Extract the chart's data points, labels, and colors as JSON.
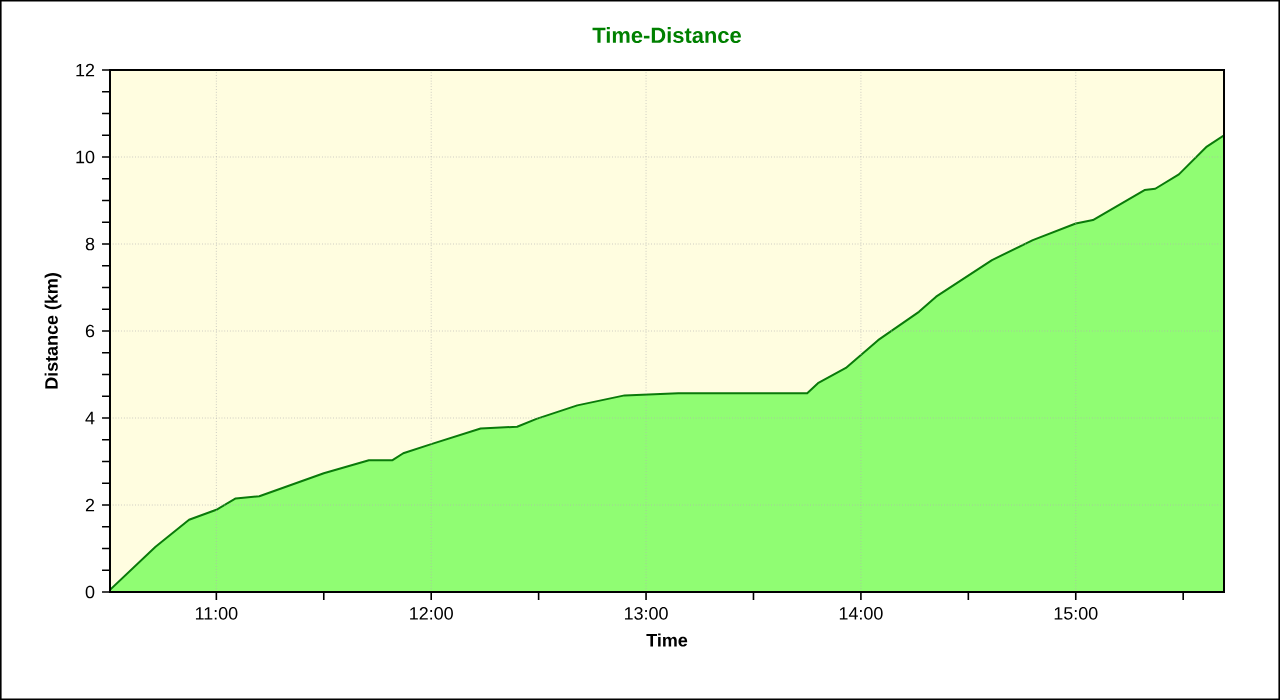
{
  "chart_data": {
    "type": "area",
    "title": "Time-Distance",
    "xlabel": "Time",
    "ylabel": "Distance (km)",
    "x": [
      10.505,
      10.717,
      10.873,
      11.0,
      11.09,
      11.2,
      11.5,
      11.71,
      11.82,
      11.87,
      12.0,
      12.23,
      12.4,
      12.49,
      12.68,
      12.9,
      13.15,
      13.75,
      13.8,
      13.93,
      14.08,
      14.27,
      14.35,
      14.61,
      14.8,
      15.0,
      15.08,
      15.32,
      15.37,
      15.48,
      15.61,
      15.69
    ],
    "series": [
      {
        "color": "#0a7a0a",
        "values": [
          0.05,
          1.04,
          1.66,
          1.89,
          2.15,
          2.2,
          2.73,
          3.03,
          3.03,
          3.19,
          3.4,
          3.76,
          3.8,
          3.98,
          4.29,
          4.52,
          4.57,
          4.57,
          4.8,
          5.15,
          5.79,
          6.44,
          6.79,
          7.63,
          8.09,
          8.47,
          8.55,
          9.24,
          9.27,
          9.6,
          10.24,
          10.5
        ]
      }
    ],
    "xlim": [
      10.505,
      15.69
    ],
    "ylim": [
      0,
      12
    ],
    "xticks": [
      {
        "value": 11,
        "label": "11:00"
      },
      {
        "value": 11.5,
        "label": null
      },
      {
        "value": 12,
        "label": "12:00"
      },
      {
        "value": 12.5,
        "label": null
      },
      {
        "value": 13,
        "label": "13:00"
      },
      {
        "value": 13.5,
        "label": null
      },
      {
        "value": 14,
        "label": "14:00"
      },
      {
        "value": 14.5,
        "label": null
      },
      {
        "value": 15,
        "label": "15:00"
      },
      {
        "value": 15.5,
        "label": null
      }
    ],
    "yticks": [
      0,
      {
        "value": 0.5,
        "label": null
      },
      {
        "value": 1,
        "label": null
      },
      {
        "value": 1.5,
        "label": null
      },
      2,
      {
        "value": 2.5,
        "label": null
      },
      {
        "value": 3,
        "label": null
      },
      {
        "value": 3.5,
        "label": null
      },
      4,
      {
        "value": 4.5,
        "label": null
      },
      {
        "value": 5,
        "label": null
      },
      {
        "value": 5.5,
        "label": null
      },
      6,
      {
        "value": 6.5,
        "label": null
      },
      {
        "value": 7,
        "label": null
      },
      {
        "value": 7.5,
        "label": null
      },
      8,
      {
        "value": 8.5,
        "label": null
      },
      {
        "value": 9,
        "label": null
      },
      {
        "value": 9.5,
        "label": null
      },
      10,
      {
        "value": 10.5,
        "label": null
      },
      {
        "value": 11,
        "label": null
      },
      {
        "value": 11.5,
        "label": null
      },
      12
    ],
    "grid": true
  }
}
